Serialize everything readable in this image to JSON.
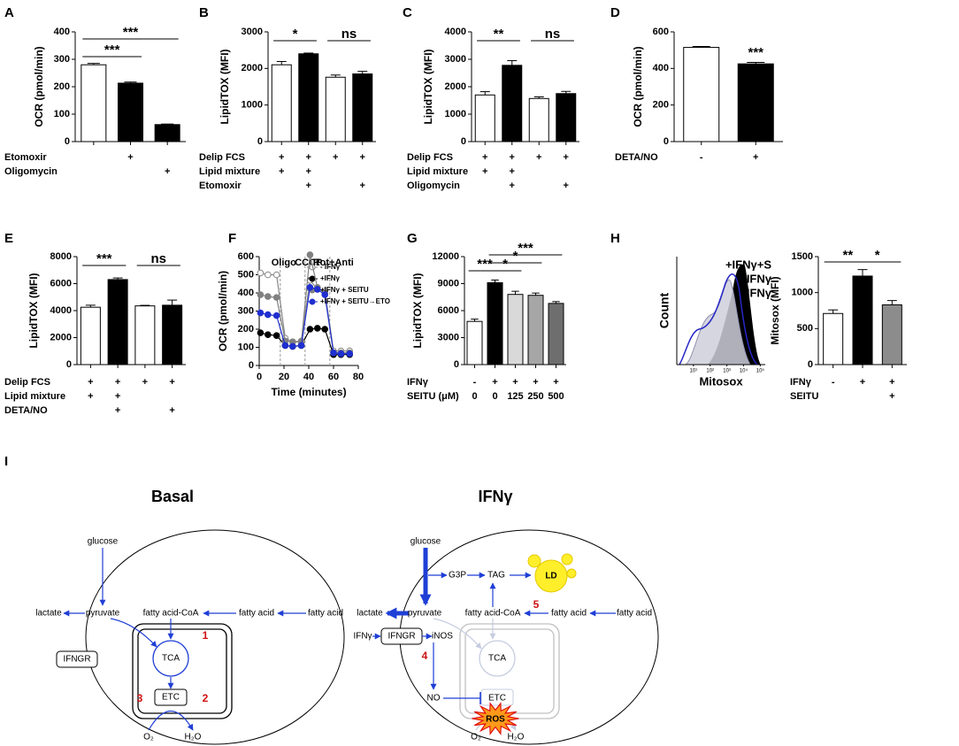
{
  "chart_data": [
    {
      "type": "bar",
      "label": "A",
      "ylabel": "OCR (pmol/min)",
      "ylim": [
        0,
        400
      ],
      "yticks": [
        0,
        100,
        200,
        300,
        400
      ],
      "values": [
        280,
        213,
        62
      ],
      "errors": [
        5,
        4,
        2
      ],
      "colors": [
        "#ffffff",
        "#000000",
        "#000000"
      ],
      "treatments": [
        {
          "label": "Etomoxir",
          "marks": [
            null,
            "+",
            null
          ]
        },
        {
          "label": "Oligomycin",
          "marks": [
            null,
            null,
            "+"
          ]
        }
      ],
      "significance": [
        "***",
        "***"
      ]
    },
    {
      "type": "bar",
      "label": "B",
      "ylabel": "LipidTOX (MFI)",
      "ylim": [
        0,
        3000
      ],
      "yticks": [
        0,
        1000,
        2000,
        3000
      ],
      "values": [
        2100,
        2400,
        1760,
        1850
      ],
      "errors": [
        90,
        20,
        60,
        70
      ],
      "colors": [
        "#ffffff",
        "#000000",
        "#ffffff",
        "#000000"
      ],
      "treatments": [
        {
          "label": "Delip FCS",
          "marks": [
            "+",
            "+",
            "+",
            "+"
          ]
        },
        {
          "label": "Lipid mixture",
          "marks": [
            "+",
            "+",
            null,
            null
          ]
        },
        {
          "label": "Etomoxir",
          "marks": [
            null,
            "+",
            null,
            "+"
          ]
        }
      ],
      "significance": [
        "*",
        "ns"
      ]
    },
    {
      "type": "bar",
      "label": "C",
      "ylabel": "LipidTOX (MFI)",
      "ylim": [
        0,
        4000
      ],
      "yticks": [
        0,
        1000,
        2000,
        3000,
        4000
      ],
      "values": [
        1700,
        2780,
        1570,
        1750
      ],
      "errors": [
        120,
        170,
        60,
        80
      ],
      "colors": [
        "#ffffff",
        "#000000",
        "#ffffff",
        "#000000"
      ],
      "treatments": [
        {
          "label": "Delip FCS",
          "marks": [
            "+",
            "+",
            "+",
            "+"
          ]
        },
        {
          "label": "Lipid mixture",
          "marks": [
            "+",
            "+",
            null,
            null
          ]
        },
        {
          "label": "Oligomycin",
          "marks": [
            null,
            "+",
            null,
            "+"
          ]
        }
      ],
      "significance": [
        "**",
        "ns"
      ]
    },
    {
      "type": "bar",
      "label": "D",
      "ylabel": "OCR (pmol/min)",
      "ylim": [
        0,
        600
      ],
      "yticks": [
        0,
        200,
        400,
        600
      ],
      "values": [
        515,
        425
      ],
      "errors": [
        5,
        8
      ],
      "colors": [
        "#ffffff",
        "#000000"
      ],
      "treatments": [
        {
          "label": "DETA/NO",
          "marks": [
            "-",
            "+"
          ]
        }
      ],
      "significance": [
        "***"
      ]
    },
    {
      "type": "bar",
      "label": "E",
      "ylabel": "LipidTOX (MFI)",
      "ylim": [
        0,
        8000
      ],
      "yticks": [
        0,
        2000,
        4000,
        6000,
        8000
      ],
      "values": [
        4250,
        6300,
        4350,
        4400
      ],
      "errors": [
        150,
        120,
        40,
        380
      ],
      "colors": [
        "#ffffff",
        "#000000",
        "#ffffff",
        "#000000"
      ],
      "treatments": [
        {
          "label": "Delip FCS",
          "marks": [
            "+",
            "+",
            "+",
            "+"
          ]
        },
        {
          "label": "Lipid mixture",
          "marks": [
            "+",
            "+",
            null,
            null
          ]
        },
        {
          "label": "DETA/NO",
          "marks": [
            null,
            "+",
            null,
            "+"
          ]
        }
      ],
      "significance": [
        "***",
        "ns"
      ]
    },
    {
      "type": "line",
      "label": "F",
      "ylabel": "OCR (pmol/min)",
      "xlabel": "Time (minutes)",
      "xlim": [
        0,
        80
      ],
      "xticks": [
        0,
        20,
        40,
        60,
        80
      ],
      "ylim": [
        0,
        600
      ],
      "yticks": [
        0,
        100,
        200,
        300,
        400,
        500,
        600
      ],
      "x": [
        1,
        7,
        14,
        21,
        27,
        34,
        41,
        47,
        53,
        60,
        66,
        73
      ],
      "injections": [
        {
          "label": "Oligo",
          "x": 17
        },
        {
          "label": "CCCP",
          "x": 37
        },
        {
          "label": "Rot+Anti",
          "x": 57
        }
      ],
      "series": [
        {
          "name": "- IFNγ",
          "color": "#888888",
          "fill": "#ffffff",
          "values": [
            510,
            500,
            500,
            150,
            130,
            135,
            470,
            420,
            410,
            80,
            80,
            80
          ]
        },
        {
          "name": "+IFNγ",
          "color": "#000000",
          "fill": "#000000",
          "values": [
            180,
            170,
            165,
            110,
            105,
            110,
            200,
            205,
            200,
            60,
            60,
            60
          ]
        },
        {
          "name": "+IFNγ + SEITU",
          "color": "#808080",
          "fill": "#808080",
          "values": [
            390,
            380,
            375,
            135,
            130,
            130,
            610,
            430,
            400,
            70,
            70,
            70
          ]
        },
        {
          "name": "+IFNγ + SEITU→ETO",
          "color": "#1f2fd0",
          "fill": "#1f2fd0",
          "values": [
            290,
            280,
            275,
            110,
            105,
            110,
            430,
            420,
            390,
            70,
            65,
            65
          ]
        }
      ]
    },
    {
      "type": "bar",
      "label": "G",
      "ylabel": "LipidTOX (MFI)",
      "ylim": [
        0,
        12000
      ],
      "yticks": [
        0,
        3000,
        6000,
        9000,
        12000
      ],
      "values": [
        4800,
        9100,
        7800,
        7700,
        6800
      ],
      "errors": [
        250,
        300,
        350,
        250,
        200
      ],
      "colors": [
        "#ffffff",
        "#000000",
        "#d9d9d9",
        "#a6a6a6",
        "#6e6e6e"
      ],
      "treatments": [
        {
          "label": "IFNγ",
          "marks": [
            "-",
            "+",
            "+",
            "+",
            "+"
          ]
        },
        {
          "label": "SEITU (μM)",
          "marks": [
            "0",
            "0",
            "125",
            "250",
            "500"
          ]
        }
      ],
      "significance": [
        "***",
        "*",
        "*",
        "***"
      ]
    },
    {
      "type": "flow",
      "label": "H",
      "ylabel": "Count",
      "xlabel": "Mitosox",
      "log_x": true,
      "xlim": [
        1,
        200000
      ],
      "xticks": [
        {
          "value": 10,
          "label": "10¹"
        },
        {
          "value": 100,
          "label": "10²"
        },
        {
          "value": 1000,
          "label": "10³"
        },
        {
          "value": 10000,
          "label": "10⁴"
        },
        {
          "value": 100000,
          "label": "10⁵"
        }
      ],
      "legend": [
        {
          "name": "+IFNγ+S",
          "color": "#2727c9"
        },
        {
          "name": "- IFNγ",
          "color": "#a0a0a0"
        },
        {
          "name": "+IFNγ",
          "color": "#000000"
        }
      ]
    },
    {
      "type": "bar",
      "ylabel": "Mitosox (MFI)",
      "ylim": [
        0,
        1500
      ],
      "yticks": [
        0,
        500,
        1000,
        1500
      ],
      "values": [
        710,
        1230,
        830
      ],
      "errors": [
        50,
        90,
        60
      ],
      "colors": [
        "#ffffff",
        "#000000",
        "#8c8c8c"
      ],
      "treatments": [
        {
          "label": "IFNγ",
          "marks": [
            "-",
            "+",
            "+"
          ]
        },
        {
          "label": "SEITU",
          "marks": [
            null,
            null,
            "+"
          ]
        }
      ],
      "significance": [
        "**",
        "*"
      ]
    }
  ],
  "diagram": {
    "label": "I",
    "basal": {
      "title": "Basal",
      "labels": [
        "glucose",
        "lactate",
        "pyruvate",
        "fatty acid-CoA",
        "fatty acid",
        "fatty acid",
        "IFNGR",
        "TCA",
        "ETC",
        "O₂",
        "H₂O"
      ],
      "steps": [
        "1",
        "2",
        "3"
      ]
    },
    "ifng": {
      "title": "IFNγ",
      "labels": [
        "glucose",
        "G3P",
        "TAG",
        "LD",
        "lactate",
        "pyruvate",
        "fatty acid-CoA",
        "fatty acid",
        "fatty acid",
        "TCA",
        "IFNγ",
        "IFNGR",
        "iNOS",
        "NO",
        "ETC",
        "ROS",
        "O₂",
        "H₂O"
      ],
      "steps": [
        "4",
        "5"
      ]
    }
  }
}
